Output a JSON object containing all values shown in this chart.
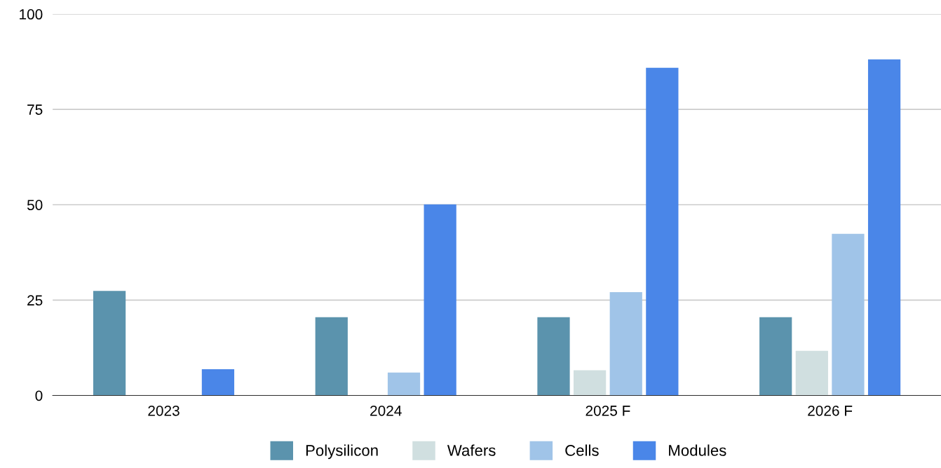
{
  "chart_data": {
    "type": "bar",
    "categories": [
      "2023",
      "2024",
      "2025 F",
      "2026 F"
    ],
    "series": [
      {
        "name": "Polysilicon",
        "color": "#5b93ad",
        "values": [
          27.4,
          20.5,
          20.5,
          20.5
        ]
      },
      {
        "name": "Wafers",
        "color": "#d0dfe0",
        "values": [
          null,
          null,
          6.6,
          11.7
        ]
      },
      {
        "name": "Cells",
        "color": "#a0c4e8",
        "values": [
          null,
          6.0,
          27.1,
          42.4
        ]
      },
      {
        "name": "Modules",
        "color": "#4a86e8",
        "values": [
          6.9,
          50.1,
          85.9,
          88.1
        ]
      }
    ],
    "ylim": [
      0,
      100
    ],
    "yticks": [
      0,
      25,
      50,
      75,
      100
    ],
    "grid": "y",
    "legend": "bottom"
  }
}
